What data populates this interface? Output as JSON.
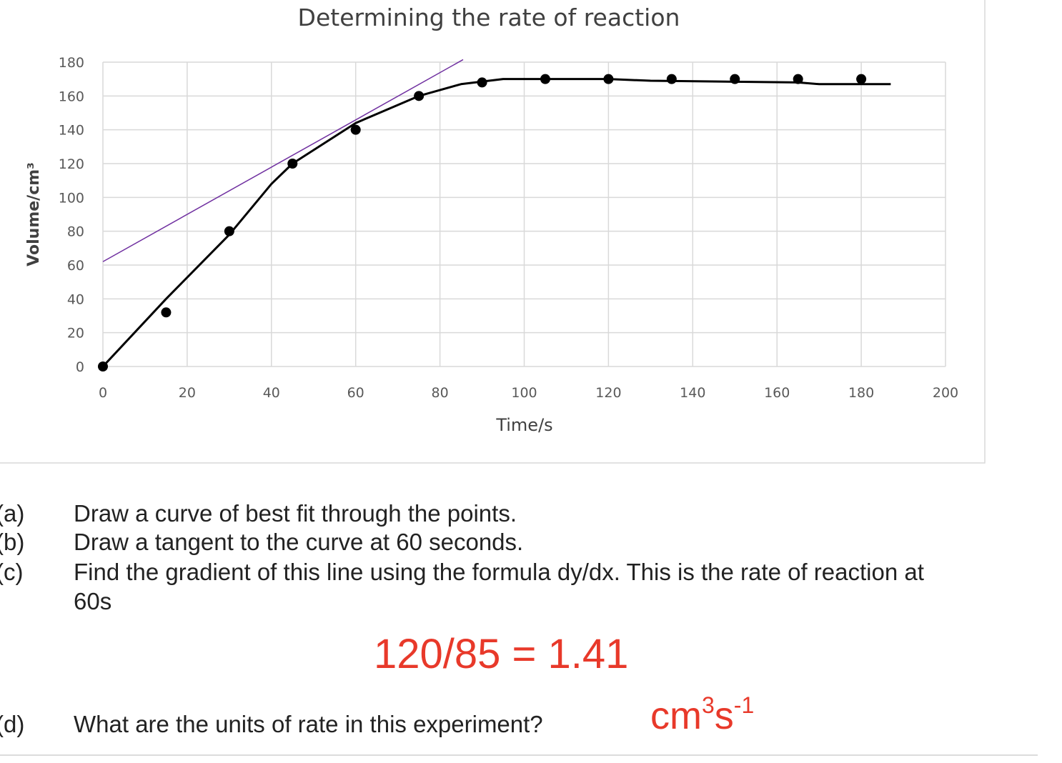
{
  "chart_data": {
    "type": "scatter",
    "title": "Determining the rate of reaction",
    "x_label": "Time/s",
    "y_label": "Volume/cm³",
    "xlim": [
      0,
      200
    ],
    "xticks": [
      0,
      20,
      40,
      60,
      80,
      100,
      120,
      140,
      160,
      180,
      200
    ],
    "ylim": [
      0,
      180
    ],
    "yticks": [
      0,
      20,
      40,
      60,
      80,
      100,
      120,
      140,
      160,
      180
    ],
    "grid": true,
    "points": {
      "color": "#000000",
      "x": [
        0,
        15,
        30,
        45,
        60,
        75,
        90,
        105,
        120,
        135,
        150,
        165,
        180
      ],
      "y": [
        0,
        32,
        80,
        120,
        140,
        160,
        168,
        170,
        170,
        170,
        170,
        170,
        170
      ]
    },
    "best_fit_curve": {
      "color": "#000000",
      "x": [
        0,
        15,
        30,
        40,
        45,
        60,
        75,
        85,
        95,
        120,
        130,
        165,
        170,
        180,
        187
      ],
      "y": [
        0,
        40,
        78,
        108,
        120,
        144,
        160,
        167,
        170,
        170,
        169,
        168,
        167,
        167,
        167
      ]
    },
    "tangent": {
      "color": "#7030a0",
      "x": [
        0,
        85.5
      ],
      "y": [
        62,
        181.5
      ]
    }
  },
  "questions": [
    {
      "label": "(a)",
      "lines": [
        "Draw a curve of best fit through the points."
      ]
    },
    {
      "label": "(b)",
      "lines": [
        "Draw a tangent to the curve at 60 seconds."
      ]
    },
    {
      "label": "(c)",
      "lines": [
        "Find the gradient of this line using the formula dy/dx. This is the rate of reaction at",
        "60s"
      ]
    },
    {
      "label": "(d)",
      "lines": [
        "What are the units of rate in this experiment?"
      ]
    }
  ],
  "answer_gradient": "120/85 = 1.41",
  "answer_units": {
    "base1": "cm",
    "sup1": "3",
    "base2": "s",
    "sup2": "-1"
  }
}
